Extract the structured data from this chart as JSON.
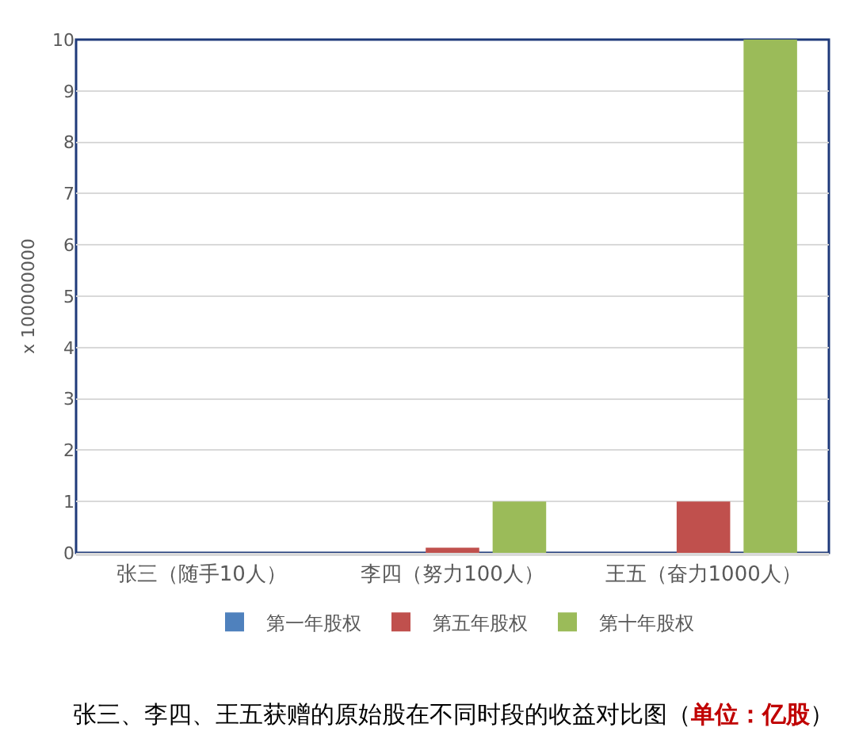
{
  "chart_data": {
    "type": "bar",
    "title": "张三、李四、王五获赠的原始股在不同时段的收益对比图",
    "subtitle": "（单位：亿股）",
    "ylabel": "x 100000000",
    "categories": [
      "张三（随手10人）",
      "李四（努力100人）",
      "王五（奋力1000人）"
    ],
    "series": [
      {
        "name": "第一年股权",
        "color": "#4f81bd",
        "values": [
          0,
          0,
          0
        ]
      },
      {
        "name": "第五年股权",
        "color": "#c0504d",
        "values": [
          0,
          0.1,
          1
        ]
      },
      {
        "name": "第十年股权",
        "color": "#9bbb59",
        "values": [
          0,
          1,
          10
        ]
      }
    ],
    "ylim": [
      0,
      10
    ],
    "yticks": [
      0,
      1,
      2,
      3,
      4,
      5,
      6,
      7,
      8,
      9,
      10
    ],
    "grid": "y",
    "legend": "bottom"
  }
}
